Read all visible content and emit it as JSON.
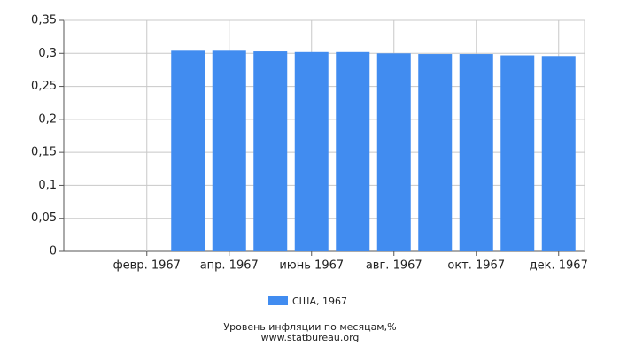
{
  "chart_data": {
    "type": "bar",
    "title": "Уровень инфляции по месяцам,%",
    "subtitle": "www.statbureau.org",
    "categories": [
      null,
      "февр. 1967",
      null,
      "апр. 1967",
      null,
      "июнь 1967",
      null,
      "авг. 1967",
      null,
      "окт. 1967",
      null,
      "дек. 1967"
    ],
    "series": [
      {
        "name": "США, 1967",
        "color": "#418cf0",
        "values": [
          null,
          null,
          0.304,
          0.304,
          0.303,
          0.302,
          0.302,
          0.3,
          0.299,
          0.299,
          0.297,
          0.296
        ]
      }
    ],
    "ylim": [
      0,
      0.35
    ],
    "yticks": [
      0,
      {
        "value": 0.05,
        "label": "0,05"
      },
      {
        "value": 0.1,
        "label": "0,1"
      },
      {
        "value": 0.15,
        "label": "0,15"
      },
      {
        "value": 0.2,
        "label": "0,2"
      },
      {
        "value": 0.25,
        "label": "0,25"
      },
      {
        "value": 0.3,
        "label": "0,3"
      },
      {
        "value": 0.35,
        "label": "0,35"
      }
    ],
    "grid": true
  }
}
